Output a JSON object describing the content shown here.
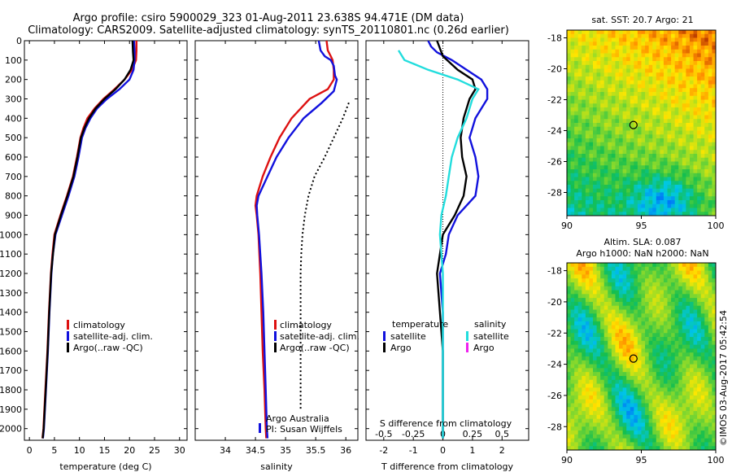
{
  "title": {
    "line1": "Argo profile: csiro 5900029_323 01-Aug-2011 23.638S 94.471E (DM data)",
    "line2": "Climatology: CARS2009. Satellite-adjusted climatology: synTS_20110801.nc (0.26d earlier)"
  },
  "colors": {
    "climatology": "#dd1111",
    "satellite": "#1111dd",
    "argo": "#000000",
    "sat_salinity": "#22dddd",
    "argo_salinity": "#ee22ee"
  },
  "credits": {
    "institution": "Argo Australia",
    "pi": "PI: Susan Wijffels",
    "stamp": "©IMOS 03-Aug-2017 05:42:54"
  },
  "chart_data": [
    {
      "type": "line",
      "id": "temperature",
      "xlabel": "temperature (deg C)",
      "ylabel": "",
      "xlim": [
        -1,
        31.5
      ],
      "ylim": [
        2060,
        0
      ],
      "xticks": [
        0,
        5,
        10,
        15,
        20,
        25,
        30
      ],
      "yticks": [
        0,
        100,
        200,
        300,
        400,
        500,
        600,
        700,
        800,
        900,
        1000,
        1100,
        1200,
        1300,
        1400,
        1500,
        1600,
        1700,
        1800,
        1900,
        2000
      ],
      "legend": [
        "climatology",
        "satellite-adj. clim.",
        "Argo(..raw -QC)"
      ],
      "legend_position": "lower-center",
      "series": [
        {
          "name": "climatology",
          "color_key": "climatology",
          "dash": "",
          "points": [
            [
              21.4,
              0
            ],
            [
              21.4,
              50
            ],
            [
              21.3,
              100
            ],
            [
              20.5,
              150
            ],
            [
              19,
              200
            ],
            [
              17,
              250
            ],
            [
              14.8,
              300
            ],
            [
              13,
              350
            ],
            [
              11.6,
              400
            ],
            [
              10.8,
              450
            ],
            [
              10.2,
              500
            ],
            [
              9.5,
              600
            ],
            [
              8.7,
              700
            ],
            [
              7.5,
              800
            ],
            [
              6.2,
              900
            ],
            [
              5,
              1000
            ],
            [
              4.6,
              1100
            ],
            [
              4.3,
              1200
            ],
            [
              3.9,
              1400
            ],
            [
              3.6,
              1600
            ],
            [
              3.2,
              1800
            ],
            [
              2.8,
              2000
            ],
            [
              2.6,
              2050
            ]
          ]
        },
        {
          "name": "satellite-adj. clim.",
          "color_key": "satellite",
          "dash": "",
          "points": [
            [
              20.9,
              0
            ],
            [
              21,
              50
            ],
            [
              21,
              100
            ],
            [
              20.8,
              150
            ],
            [
              20,
              200
            ],
            [
              18,
              250
            ],
            [
              15.5,
              300
            ],
            [
              13.5,
              350
            ],
            [
              12.2,
              400
            ],
            [
              11.2,
              450
            ],
            [
              10.5,
              500
            ],
            [
              9.8,
              600
            ],
            [
              9,
              700
            ],
            [
              7.8,
              800
            ],
            [
              6.5,
              900
            ],
            [
              5.2,
              1000
            ],
            [
              4.7,
              1100
            ],
            [
              4.4,
              1200
            ],
            [
              4,
              1400
            ],
            [
              3.7,
              1600
            ],
            [
              3.3,
              1800
            ],
            [
              2.9,
              2000
            ],
            [
              2.7,
              2050
            ]
          ]
        },
        {
          "name": "Argo(..raw -QC)",
          "color_key": "argo",
          "dash": "",
          "points": [
            [
              20.6,
              0
            ],
            [
              20.7,
              60
            ],
            [
              20.8,
              100
            ],
            [
              20.2,
              150
            ],
            [
              19,
              200
            ],
            [
              17.2,
              250
            ],
            [
              15,
              300
            ],
            [
              13.2,
              350
            ],
            [
              11.9,
              400
            ],
            [
              11,
              450
            ],
            [
              10.3,
              500
            ],
            [
              9.6,
              600
            ],
            [
              8.8,
              700
            ],
            [
              7.6,
              800
            ],
            [
              6.3,
              900
            ],
            [
              5.1,
              1000
            ],
            [
              4.7,
              1100
            ],
            [
              4.35,
              1200
            ],
            [
              3.95,
              1400
            ],
            [
              3.65,
              1600
            ],
            [
              3.25,
              1800
            ],
            [
              2.85,
              2000
            ],
            [
              2.65,
              2050
            ]
          ]
        }
      ]
    },
    {
      "type": "line",
      "id": "salinity",
      "xlabel": "salinity",
      "xlim": [
        33.5,
        36.2
      ],
      "ylim": [
        2060,
        0
      ],
      "xticks": [
        34,
        34.5,
        35,
        35.5,
        36
      ],
      "legend": [
        "climatology",
        "satellite-adj. clim.",
        "Argo(..raw -QC)"
      ],
      "legend_position": "lower-right",
      "series": [
        {
          "name": "climatology",
          "color_key": "climatology",
          "dash": "",
          "points": [
            [
              35.68,
              0
            ],
            [
              35.7,
              50
            ],
            [
              35.75,
              80
            ],
            [
              35.78,
              100
            ],
            [
              35.8,
              150
            ],
            [
              35.8,
              200
            ],
            [
              35.7,
              250
            ],
            [
              35.4,
              300
            ],
            [
              35.1,
              400
            ],
            [
              34.9,
              500
            ],
            [
              34.75,
              600
            ],
            [
              34.62,
              700
            ],
            [
              34.52,
              800
            ],
            [
              34.5,
              850
            ],
            [
              34.52,
              900
            ],
            [
              34.55,
              1000
            ],
            [
              34.58,
              1200
            ],
            [
              34.6,
              1400
            ],
            [
              34.62,
              1600
            ],
            [
              34.65,
              1800
            ],
            [
              34.67,
              2000
            ],
            [
              34.68,
              2050
            ]
          ]
        },
        {
          "name": "satellite-adj. clim.",
          "color_key": "satellite",
          "dash": "",
          "points": [
            [
              35.55,
              0
            ],
            [
              35.58,
              50
            ],
            [
              35.65,
              80
            ],
            [
              35.75,
              100
            ],
            [
              35.8,
              130
            ],
            [
              35.82,
              180
            ],
            [
              35.85,
              200
            ],
            [
              35.8,
              260
            ],
            [
              35.6,
              320
            ],
            [
              35.3,
              400
            ],
            [
              35.05,
              500
            ],
            [
              34.85,
              600
            ],
            [
              34.7,
              700
            ],
            [
              34.55,
              800
            ],
            [
              34.52,
              850
            ],
            [
              34.53,
              900
            ],
            [
              34.56,
              1000
            ],
            [
              34.6,
              1200
            ],
            [
              34.63,
              1400
            ],
            [
              34.65,
              1600
            ],
            [
              34.67,
              1800
            ],
            [
              34.69,
              2000
            ],
            [
              34.7,
              2050
            ]
          ]
        },
        {
          "name": "Argo(..raw -QC)",
          "color_key": "argo",
          "dash": "dot",
          "points": [
            [
              36.05,
              320
            ],
            [
              35.95,
              400
            ],
            [
              35.8,
              500
            ],
            [
              35.65,
              600
            ],
            [
              35.48,
              700
            ],
            [
              35.38,
              800
            ],
            [
              35.32,
              900
            ],
            [
              35.28,
              1000
            ],
            [
              35.26,
              1100
            ],
            [
              35.25,
              1200
            ],
            [
              35.25,
              1400
            ],
            [
              35.25,
              1600
            ],
            [
              35.25,
              1800
            ],
            [
              35.25,
              1900
            ]
          ]
        }
      ]
    },
    {
      "type": "line",
      "id": "difference",
      "xlabel": "T difference from climatology",
      "xlabel2": "S difference from climatology",
      "xlim": [
        -2.6,
        2.9
      ],
      "ylim": [
        2060,
        0
      ],
      "xticks": [
        -2,
        -1,
        0,
        1,
        2
      ],
      "xticks_s": [
        -0.5,
        -0.25,
        0,
        0.25,
        0.5
      ],
      "xticks_s_text": [
        "-0.5",
        "-0.25",
        "0",
        "0.25",
        "0.5"
      ],
      "legend_temperature_title": "temperature",
      "legend_salinity_title": "salinity",
      "legend_temperature": [
        "satellite",
        "Argo"
      ],
      "legend_salinity": [
        "satellite",
        "Argo"
      ],
      "series": [
        {
          "name": "temperature satellite",
          "color_key": "satellite",
          "dash": "",
          "points": [
            [
              -0.5,
              0
            ],
            [
              -0.4,
              30
            ],
            [
              -0.2,
              60
            ],
            [
              0.3,
              100
            ],
            [
              0.8,
              150
            ],
            [
              1.3,
              200
            ],
            [
              1.5,
              250
            ],
            [
              1.5,
              300
            ],
            [
              1.3,
              350
            ],
            [
              1.1,
              400
            ],
            [
              1,
              450
            ],
            [
              0.9,
              500
            ],
            [
              1.1,
              600
            ],
            [
              1.2,
              700
            ],
            [
              1.1,
              800
            ],
            [
              0.5,
              900
            ],
            [
              0.2,
              1000
            ],
            [
              0.1,
              1100
            ],
            [
              -0.1,
              1200
            ],
            [
              0,
              1400
            ],
            [
              0,
              1600
            ],
            [
              0,
              1800
            ],
            [
              0,
              2000
            ],
            [
              0,
              2050
            ]
          ]
        },
        {
          "name": "temperature Argo",
          "color_key": "argo",
          "dash": "",
          "points": [
            [
              -0.2,
              0
            ],
            [
              -0.1,
              40
            ],
            [
              0,
              80
            ],
            [
              0.5,
              150
            ],
            [
              1,
              200
            ],
            [
              1.1,
              250
            ],
            [
              0.9,
              300
            ],
            [
              0.7,
              400
            ],
            [
              0.6,
              500
            ],
            [
              0.65,
              600
            ],
            [
              0.8,
              700
            ],
            [
              0.7,
              800
            ],
            [
              0.4,
              900
            ],
            [
              0,
              1000
            ],
            [
              -0.1,
              1100
            ],
            [
              -0.2,
              1200
            ],
            [
              -0.1,
              1400
            ],
            [
              0,
              1600
            ],
            [
              0,
              1800
            ],
            [
              0,
              2000
            ],
            [
              0,
              2050
            ]
          ]
        },
        {
          "name": "salinity satellite",
          "color_key": "sat_salinity",
          "dash": "",
          "points": [
            [
              -1.5,
              50
            ],
            [
              -1.3,
              100
            ],
            [
              -0.5,
              150
            ],
            [
              0.5,
              200
            ],
            [
              1.2,
              250
            ],
            [
              1,
              300
            ],
            [
              0.8,
              400
            ],
            [
              0.5,
              500
            ],
            [
              0.3,
              600
            ],
            [
              0.2,
              700
            ],
            [
              0.1,
              800
            ],
            [
              -0.05,
              900
            ],
            [
              -0.1,
              1000
            ],
            [
              0,
              1200
            ],
            [
              0,
              1400
            ],
            [
              0,
              1600
            ],
            [
              0,
              1800
            ],
            [
              0,
              2000
            ],
            [
              0,
              2050
            ]
          ]
        }
      ]
    },
    {
      "type": "heatmap",
      "id": "sst_map",
      "title": "sat. SST: 20.7 Argo: 21",
      "xlim": [
        90,
        100
      ],
      "ylim": [
        -29.5,
        -17.5
      ],
      "xticks": [
        90,
        95,
        100
      ],
      "yticks": [
        -18,
        -20,
        -22,
        -24,
        -26,
        -28
      ],
      "marker": [
        94.471,
        -23.638
      ]
    },
    {
      "type": "heatmap",
      "id": "sla_map",
      "title": "Altim. SLA: 0.087",
      "subtitle": "Argo h1000: NaN h2000: NaN",
      "xlim": [
        90,
        100
      ],
      "ylim": [
        -29.5,
        -17.5
      ],
      "xticks": [
        90,
        95,
        100
      ],
      "yticks": [
        -18,
        -20,
        -22,
        -24,
        -26,
        -28
      ],
      "marker": [
        94.471,
        -23.638
      ]
    }
  ]
}
